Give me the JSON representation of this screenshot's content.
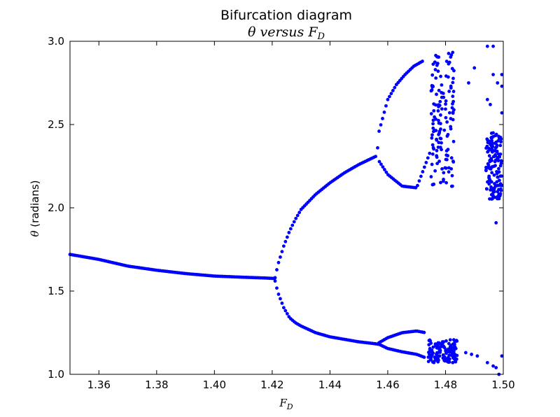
{
  "chart_data": {
    "type": "scatter",
    "title": "Bifurcation diagram",
    "subtitle_prefix": "θ versus ",
    "subtitle_var": "F",
    "subtitle_sub": "D",
    "xlabel_var": "F",
    "xlabel_sub": "D",
    "ylabel_var": "θ",
    "ylabel_rest": " (radians)",
    "xlim": [
      1.35,
      1.5
    ],
    "ylim": [
      1.0,
      3.0
    ],
    "xticks": [
      1.36,
      1.38,
      1.4,
      1.42,
      1.44,
      1.46,
      1.48,
      1.5
    ],
    "xtick_labels": [
      "1.36",
      "1.38",
      "1.40",
      "1.42",
      "1.44",
      "1.46",
      "1.48",
      "1.50"
    ],
    "yticks": [
      1.0,
      1.5,
      2.0,
      2.5,
      3.0
    ],
    "ytick_labels": [
      "1.0",
      "1.5",
      "2.0",
      "2.5",
      "3.0"
    ],
    "grid": false,
    "marker_color": "#0000ff",
    "branches": [
      {
        "x": [
          1.35,
          1.36,
          1.37,
          1.38,
          1.39,
          1.4,
          1.41,
          1.418,
          1.421
        ],
        "y": [
          1.72,
          1.69,
          1.65,
          1.625,
          1.605,
          1.59,
          1.583,
          1.578,
          1.575
        ]
      },
      {
        "x": [
          1.421,
          1.422,
          1.424,
          1.426,
          1.428,
          1.43,
          1.435,
          1.44,
          1.445,
          1.45,
          1.456
        ],
        "y": [
          1.58,
          1.66,
          1.77,
          1.86,
          1.93,
          1.99,
          2.08,
          2.15,
          2.21,
          2.26,
          2.31
        ]
      },
      {
        "x": [
          1.421,
          1.422,
          1.424,
          1.426,
          1.428,
          1.43,
          1.435,
          1.44,
          1.445,
          1.45,
          1.455,
          1.457
        ],
        "y": [
          1.56,
          1.49,
          1.4,
          1.34,
          1.31,
          1.29,
          1.25,
          1.225,
          1.21,
          1.195,
          1.185,
          1.18
        ]
      },
      {
        "x": [
          1.4565,
          1.457,
          1.46,
          1.465,
          1.47,
          1.475
        ],
        "y": [
          2.36,
          2.28,
          2.2,
          2.13,
          2.12,
          2.35
        ]
      },
      {
        "x": [
          1.457,
          1.46,
          1.463,
          1.466,
          1.469,
          1.472
        ],
        "y": [
          2.46,
          2.65,
          2.74,
          2.8,
          2.85,
          2.88
        ]
      },
      {
        "x": [
          1.457,
          1.46,
          1.465,
          1.47,
          1.473
        ],
        "y": [
          1.19,
          1.22,
          1.25,
          1.26,
          1.25
        ]
      },
      {
        "x": [
          1.457,
          1.46,
          1.465,
          1.47,
          1.473
        ],
        "y": [
          1.18,
          1.155,
          1.135,
          1.12,
          1.1
        ]
      }
    ],
    "chaotic_regions": [
      {
        "x": [
          1.474,
          1.484
        ],
        "y": [
          1.07,
          1.21
        ]
      },
      {
        "x": [
          1.475,
          1.483
        ],
        "y": [
          2.1,
          2.94
        ]
      },
      {
        "x": [
          1.494,
          1.4995
        ],
        "y": [
          2.05,
          2.45
        ]
      }
    ],
    "scattered_points": [
      {
        "x": 1.4945,
        "y": 2.97
      },
      {
        "x": 1.4965,
        "y": 2.97
      },
      {
        "x": 1.4995,
        "y": 2.8
      },
      {
        "x": 1.4965,
        "y": 2.8
      },
      {
        "x": 1.498,
        "y": 2.75
      },
      {
        "x": 1.4995,
        "y": 2.73
      },
      {
        "x": 1.4945,
        "y": 2.65
      },
      {
        "x": 1.4955,
        "y": 2.62
      },
      {
        "x": 1.4995,
        "y": 2.57
      },
      {
        "x": 1.4965,
        "y": 2.45
      },
      {
        "x": 1.4975,
        "y": 1.91
      },
      {
        "x": 1.4945,
        "y": 1.07
      },
      {
        "x": 1.4965,
        "y": 1.05
      },
      {
        "x": 1.4975,
        "y": 1.04
      },
      {
        "x": 1.4995,
        "y": 1.11
      },
      {
        "x": 1.4985,
        "y": 1.0
      },
      {
        "x": 1.49,
        "y": 2.84
      },
      {
        "x": 1.488,
        "y": 2.75
      },
      {
        "x": 1.487,
        "y": 1.13
      },
      {
        "x": 1.489,
        "y": 1.12
      },
      {
        "x": 1.491,
        "y": 1.11
      }
    ]
  }
}
